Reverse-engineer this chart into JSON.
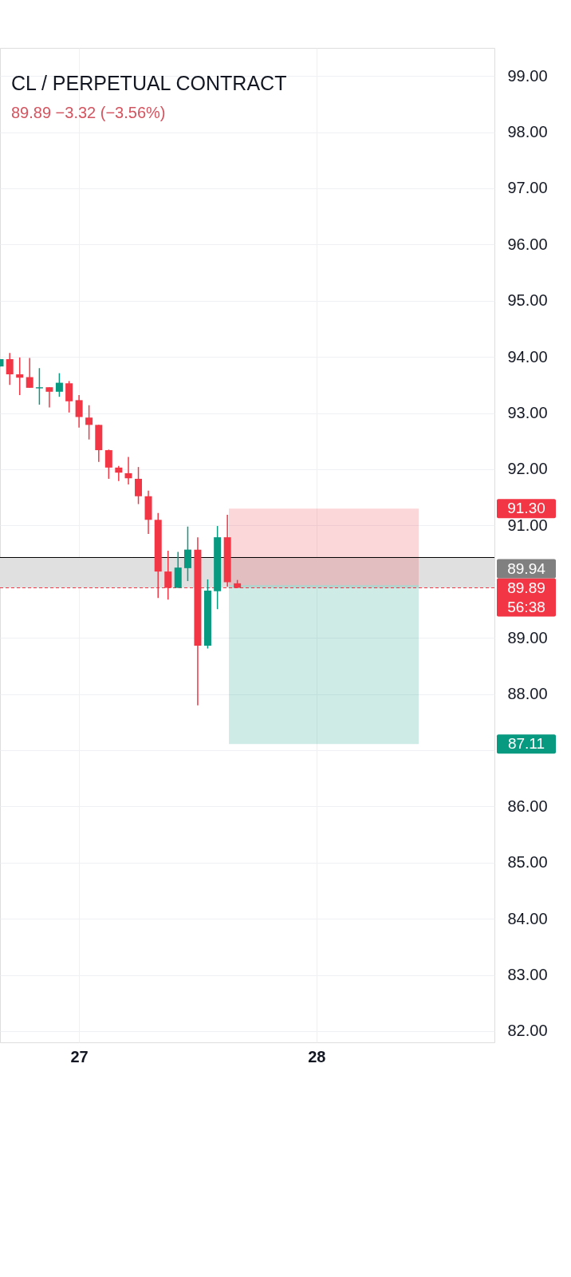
{
  "chart_data": {
    "type": "candlestick",
    "title": "CL / PERPETUAL CONTRACT",
    "subtitle": "89.89  −3.32 (−3.56%)",
    "x": [
      26.667,
      26.708,
      26.75,
      26.792,
      26.833,
      26.875,
      26.917,
      26.958,
      27,
      27.042,
      27.083,
      27.125,
      27.167,
      27.208,
      27.25,
      27.292,
      27.333,
      27.375,
      27.417,
      27.458,
      27.5,
      27.542,
      27.583,
      27.625,
      27.667
    ],
    "ohlc": [
      [
        93.83,
        93.96,
        93.83,
        93.96
      ],
      [
        93.96,
        94.07,
        93.5,
        93.69
      ],
      [
        93.69,
        93.99,
        93.32,
        93.63
      ],
      [
        93.64,
        93.98,
        93.45,
        93.45
      ],
      [
        93.44,
        93.8,
        93.15,
        93.46
      ],
      [
        93.46,
        93.46,
        93.1,
        93.38
      ],
      [
        93.38,
        93.71,
        93.29,
        93.54
      ],
      [
        93.53,
        93.57,
        93.01,
        93.21
      ],
      [
        93.23,
        93.32,
        92.74,
        92.93
      ],
      [
        92.92,
        93.14,
        92.53,
        92.79
      ],
      [
        92.79,
        92.79,
        92.13,
        92.34
      ],
      [
        92.34,
        92.35,
        91.83,
        92.03
      ],
      [
        92.03,
        92.06,
        91.79,
        91.94
      ],
      [
        91.93,
        92.22,
        91.73,
        91.84
      ],
      [
        91.83,
        92.04,
        91.38,
        91.52
      ],
      [
        91.52,
        91.62,
        90.85,
        91.1
      ],
      [
        91.1,
        91.22,
        89.71,
        90.18
      ],
      [
        90.18,
        90.55,
        89.68,
        89.89
      ],
      [
        89.89,
        90.53,
        89.89,
        90.25
      ],
      [
        90.24,
        90.98,
        90.01,
        90.57
      ],
      [
        90.57,
        90.79,
        87.8,
        88.86
      ],
      [
        88.86,
        90.04,
        88.81,
        89.84
      ],
      [
        89.83,
        90.99,
        89.51,
        90.79
      ],
      [
        90.79,
        91.19,
        89.91,
        89.99
      ],
      [
        89.97,
        90.03,
        89.89,
        89.89
      ]
    ],
    "colors": [
      "#089981",
      "#f23645",
      "#f23645",
      "#f23645",
      "#089981",
      "#f23645",
      "#089981",
      "#f23645",
      "#f23645",
      "#f23645",
      "#f23645",
      "#f23645",
      "#f23645",
      "#f23645",
      "#f23645",
      "#f23645",
      "#f23645",
      "#f23645",
      "#089981",
      "#089981",
      "#f23645",
      "#089981",
      "#089981",
      "#f23645",
      "#f23645"
    ],
    "series": [
      {
        "type": "bar",
        "x": [
          28.031
        ],
        "base": [
          89.94
        ],
        "values": [
          1.36
        ],
        "color": "#f23645"
      },
      {
        "type": "bar",
        "x": [
          28.031
        ],
        "base": [
          89.94
        ],
        "values": [
          -2.83
        ],
        "color": "#089981"
      }
    ],
    "xlim": [
      26.667,
      28.75
    ],
    "xticks": [
      27,
      28
    ],
    "ylim": [
      81.8,
      99.5
    ],
    "yticks": [
      {
        "value": 82,
        "label": "82.00"
      },
      {
        "value": 83,
        "label": "83.00"
      },
      {
        "value": 84,
        "label": "84.00"
      },
      {
        "value": 85,
        "label": "85.00"
      },
      {
        "value": 86,
        "label": "86.00"
      },
      {
        "value": 87,
        "label": null
      },
      {
        "value": 88,
        "label": "88.00"
      },
      {
        "value": 89,
        "label": "89.00"
      },
      {
        "value": 90,
        "label": null
      },
      {
        "value": 91,
        "label": "91.00"
      },
      {
        "value": 92,
        "label": "92.00"
      },
      {
        "value": 93,
        "label": "93.00"
      },
      {
        "value": 94,
        "label": "94.00"
      },
      {
        "value": 95,
        "label": "95.00"
      },
      {
        "value": 96,
        "label": "96.00"
      },
      {
        "value": 97,
        "label": "97.00"
      },
      {
        "value": 98,
        "label": "98.00"
      },
      {
        "value": 99,
        "label": "99.00"
      }
    ],
    "grid": true,
    "bands": [
      {
        "axis": "y",
        "from": 89.89,
        "to": 90.43,
        "color": "#e0e0e0"
      }
    ],
    "ref_lines": [
      {
        "axis": "y",
        "value": 90.43,
        "color": "#000000"
      },
      {
        "axis": "y",
        "value": 89.89,
        "label": "89.89",
        "color": "#f23645",
        "line_style": "dashed"
      }
    ],
    "annotations": [
      "91.30",
      "89.94",
      "87.11",
      "56:38"
    ]
  }
}
